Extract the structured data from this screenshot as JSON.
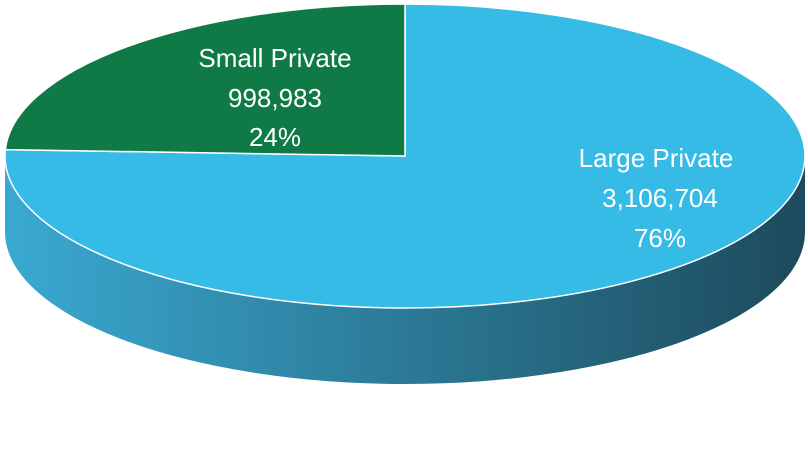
{
  "chart_data": {
    "type": "pie",
    "style": "3d",
    "slices": [
      {
        "name": "Large Private",
        "value": 3106704,
        "value_label": "3,106,704",
        "percent_label": "76%",
        "color": "#36bbe6",
        "side_color_light": "#3aa9d1",
        "side_color_dark": "#1d4a5c"
      },
      {
        "name": "Small Private",
        "value": 998983,
        "value_label": "998,983",
        "percent_label": "24%",
        "color": "#0f7a45"
      }
    ],
    "label_color": "#ffffff",
    "edge_color": "#ffffff"
  }
}
